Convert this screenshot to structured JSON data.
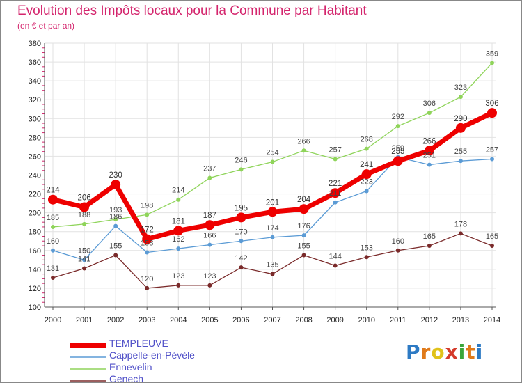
{
  "title": "Evolution des Impôts locaux pour la Commune par Habitant",
  "subtitle": "(en € et par an)",
  "logo": {
    "letters": [
      "P",
      "r",
      "o",
      "x",
      "i",
      "t",
      "i"
    ],
    "colors": [
      "#2d7ac4",
      "#e07a1a",
      "#e0c21a",
      "#d43a2a",
      "#3aa63a",
      "#e07a1a",
      "#2d7ac4"
    ]
  },
  "chart_data": {
    "type": "line",
    "title": "Evolution des Impôts locaux pour la Commune par Habitant",
    "subtitle": "(en € et par an)",
    "categories": [
      "2000",
      "2001",
      "2002",
      "2003",
      "2004",
      "2005",
      "2006",
      "2007",
      "2008",
      "2009",
      "2010",
      "2011",
      "2012",
      "2013",
      "2014"
    ],
    "ylim": [
      100,
      380
    ],
    "yticks": [
      "100",
      "120",
      "140",
      "160",
      "180",
      "200",
      "220",
      "240",
      "260",
      "280",
      "300",
      "320",
      "340",
      "360",
      "380"
    ],
    "grid": true,
    "legend_position": "bottom-left",
    "series": [
      {
        "name": "TEMPLEUVE",
        "color": "#ee0000",
        "main": true,
        "values": [
          214,
          206,
          230,
          172,
          181,
          187,
          195,
          201,
          204,
          221,
          241,
          255,
          266,
          290,
          306
        ],
        "labels": [
          "214",
          "206",
          "230",
          "172",
          "181",
          "187",
          "195",
          "201",
          "204",
          "221",
          "241",
          "255",
          "266",
          "290",
          "306"
        ]
      },
      {
        "name": "Cappelle-en-Pévèle",
        "color": "#5b9bd5",
        "main": false,
        "values": [
          160,
          150,
          186,
          158,
          162,
          166,
          170,
          174,
          176,
          211,
          223,
          259,
          251,
          255,
          257
        ],
        "labels": [
          "160",
          "150",
          "186",
          "158",
          "162",
          "166",
          "170",
          "174",
          "176",
          "211",
          "223",
          "259",
          "251",
          "255",
          "257"
        ]
      },
      {
        "name": "Ennevelin",
        "color": "#8fd45a",
        "main": false,
        "values": [
          185,
          188,
          193,
          198,
          214,
          237,
          246,
          254,
          266,
          257,
          268,
          292,
          306,
          323,
          359
        ],
        "labels": [
          "185",
          "188",
          "193",
          "198",
          "214",
          "237",
          "246",
          "254",
          "266",
          "257",
          "268",
          "292",
          "306",
          "323",
          "359"
        ]
      },
      {
        "name": "Genech",
        "color": "#7a2a2a",
        "main": false,
        "values": [
          131,
          141,
          155,
          120,
          123,
          123,
          142,
          135,
          155,
          144,
          153,
          160,
          165,
          178,
          165
        ],
        "labels": [
          "131",
          "141",
          "155",
          "120",
          "123",
          "123",
          "142",
          "135",
          "155",
          "144",
          "153",
          "160",
          "165",
          "178",
          "165"
        ]
      }
    ]
  }
}
